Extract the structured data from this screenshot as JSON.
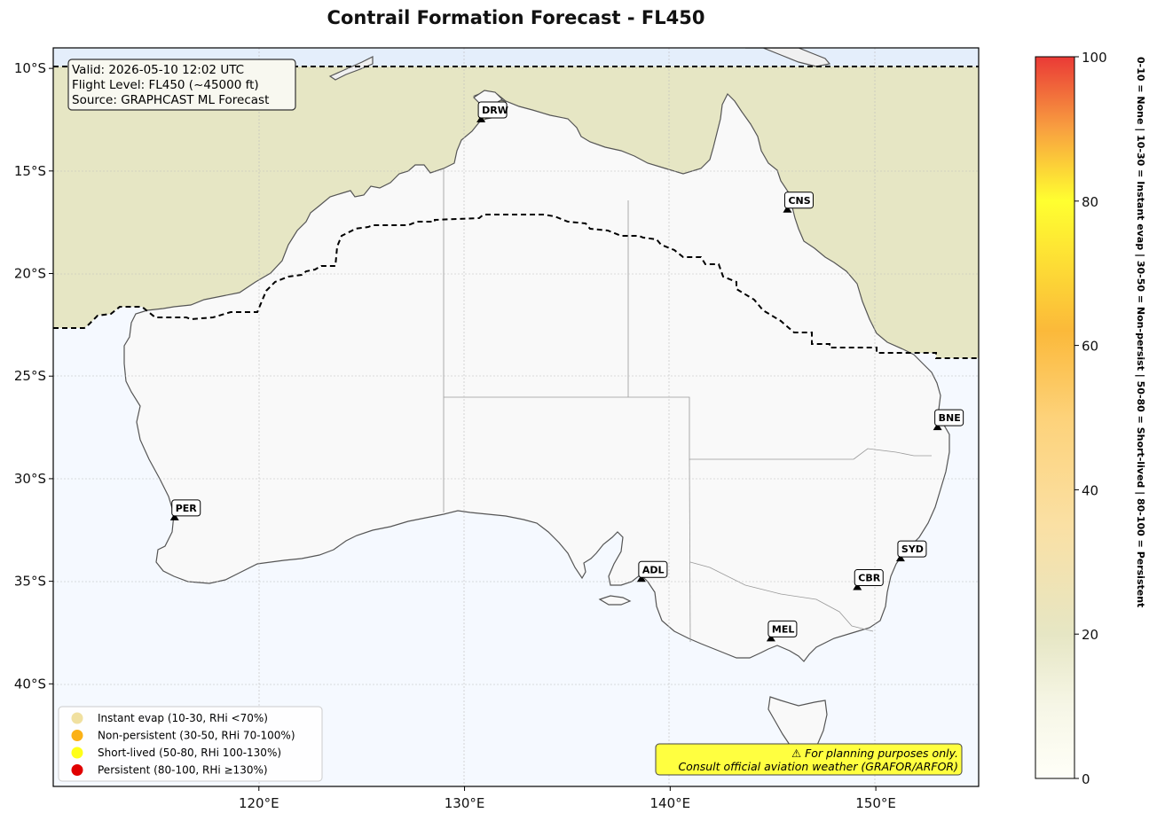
{
  "title": "Contrail Formation Forecast - FL450",
  "info": {
    "valid": "Valid: 2026-05-10 12:02 UTC",
    "flight_level": "Flight Level: FL450 (~45000 ft)",
    "source": "Source: GRAPHCAST ML Forecast"
  },
  "lat_ticks": [
    {
      "value": -10,
      "label": "10°S"
    },
    {
      "value": -15,
      "label": "15°S"
    },
    {
      "value": -20,
      "label": "20°S"
    },
    {
      "value": -25,
      "label": "25°S"
    },
    {
      "value": -30,
      "label": "30°S"
    },
    {
      "value": -35,
      "label": "35°S"
    },
    {
      "value": -40,
      "label": "40°S"
    }
  ],
  "lon_ticks": [
    {
      "value": 120,
      "label": "120°E"
    },
    {
      "value": 130,
      "label": "130°E"
    },
    {
      "value": 140,
      "label": "140°E"
    },
    {
      "value": 150,
      "label": "150°E"
    }
  ],
  "extent": {
    "lon_min": 110,
    "lon_max": 155,
    "lat_min": -45,
    "lat_max": -9
  },
  "cities": [
    {
      "code": "DRW",
      "lon": 130.8,
      "lat": -12.5
    },
    {
      "code": "CNS",
      "lon": 145.7,
      "lat": -16.9
    },
    {
      "code": "BNE",
      "lon": 153.0,
      "lat": -27.5
    },
    {
      "code": "PER",
      "lon": 115.9,
      "lat": -31.9
    },
    {
      "code": "ADL",
      "lon": 138.6,
      "lat": -34.9
    },
    {
      "code": "SYD",
      "lon": 151.2,
      "lat": -33.9
    },
    {
      "code": "CBR",
      "lon": 149.1,
      "lat": -35.3
    },
    {
      "code": "MEL",
      "lon": 144.9,
      "lat": -37.8
    }
  ],
  "legend": [
    {
      "label": "Instant evap (10-30, RHi <70%)",
      "color": "#f0e0a0"
    },
    {
      "label": "Non-persistent (30-50, RHi 70-100%)",
      "color": "#fbb117"
    },
    {
      "label": "Short-lived (50-80, RHi 100-130%)",
      "color": "#ffff19"
    },
    {
      "label": "Persistent (80-100, RHi ≥130%)",
      "color": "#e00000"
    }
  ],
  "warning": {
    "line1": "⚠ For planning purposes only.",
    "line2": "Consult official aviation weather (GRAFOR/ARFOR)"
  },
  "colorbar": {
    "ticks": [
      {
        "value": 0,
        "label": "0"
      },
      {
        "value": 20,
        "label": "20"
      },
      {
        "value": 40,
        "label": "40"
      },
      {
        "value": 60,
        "label": "60"
      },
      {
        "value": 80,
        "label": "80"
      },
      {
        "value": 100,
        "label": "100"
      }
    ],
    "side_label": "0-10 = None  |  10-30 = Instant evap  |  30-50 = Non-persist  |  50-80 = Short-lived  |  80-100 = Persistent"
  },
  "colors": {
    "ocean": "#f5f9ff",
    "land": "#f9f9f9",
    "band_north": "#e6e6c4",
    "band_top": "#e4eefb",
    "coast": "#555555"
  }
}
